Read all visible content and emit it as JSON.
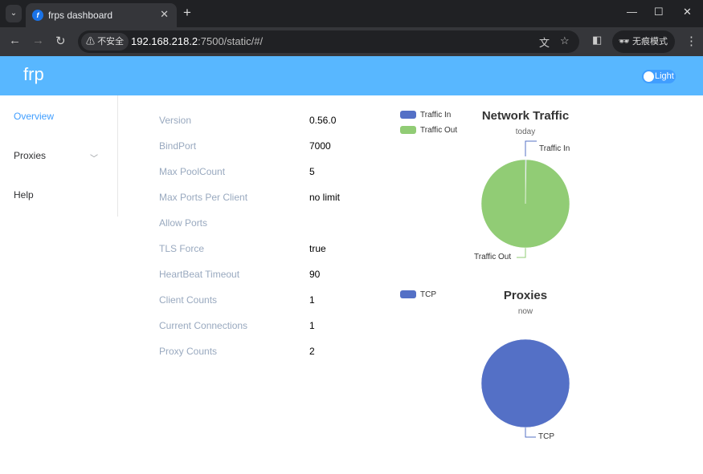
{
  "browser": {
    "tab_title": "frps dashboard",
    "security_label": "不安全",
    "url_host": "192.168.218.2",
    "url_rest": ":7500/static/#/",
    "incognito_label": "无痕模式"
  },
  "header": {
    "logo": "frp",
    "theme_toggle": "Light"
  },
  "sidebar": {
    "items": [
      {
        "label": "Overview"
      },
      {
        "label": "Proxies"
      },
      {
        "label": "Help"
      }
    ]
  },
  "overview": {
    "rows": [
      {
        "label": "Version",
        "value": "0.56.0"
      },
      {
        "label": "BindPort",
        "value": "7000"
      },
      {
        "label": "Max PoolCount",
        "value": "5"
      },
      {
        "label": "Max Ports Per Client",
        "value": "no limit"
      },
      {
        "label": "Allow Ports",
        "value": ""
      },
      {
        "label": "TLS Force",
        "value": "true"
      },
      {
        "label": "HeartBeat Timeout",
        "value": "90"
      },
      {
        "label": "Client Counts",
        "value": "1"
      },
      {
        "label": "Current Connections",
        "value": "1"
      },
      {
        "label": "Proxy Counts",
        "value": "2"
      }
    ]
  },
  "chart_data": [
    {
      "type": "pie",
      "title": "Network Traffic",
      "subtitle": "today",
      "legend": "top-left",
      "series": [
        {
          "name": "Traffic In",
          "share": 0.003,
          "color": "#5470c6"
        },
        {
          "name": "Traffic Out",
          "share": 0.997,
          "color": "#91cc75"
        }
      ]
    },
    {
      "type": "pie",
      "title": "Proxies",
      "subtitle": "now",
      "legend": "top-left",
      "series": [
        {
          "name": "TCP",
          "share": 1,
          "color": "#5470c6"
        }
      ]
    }
  ]
}
